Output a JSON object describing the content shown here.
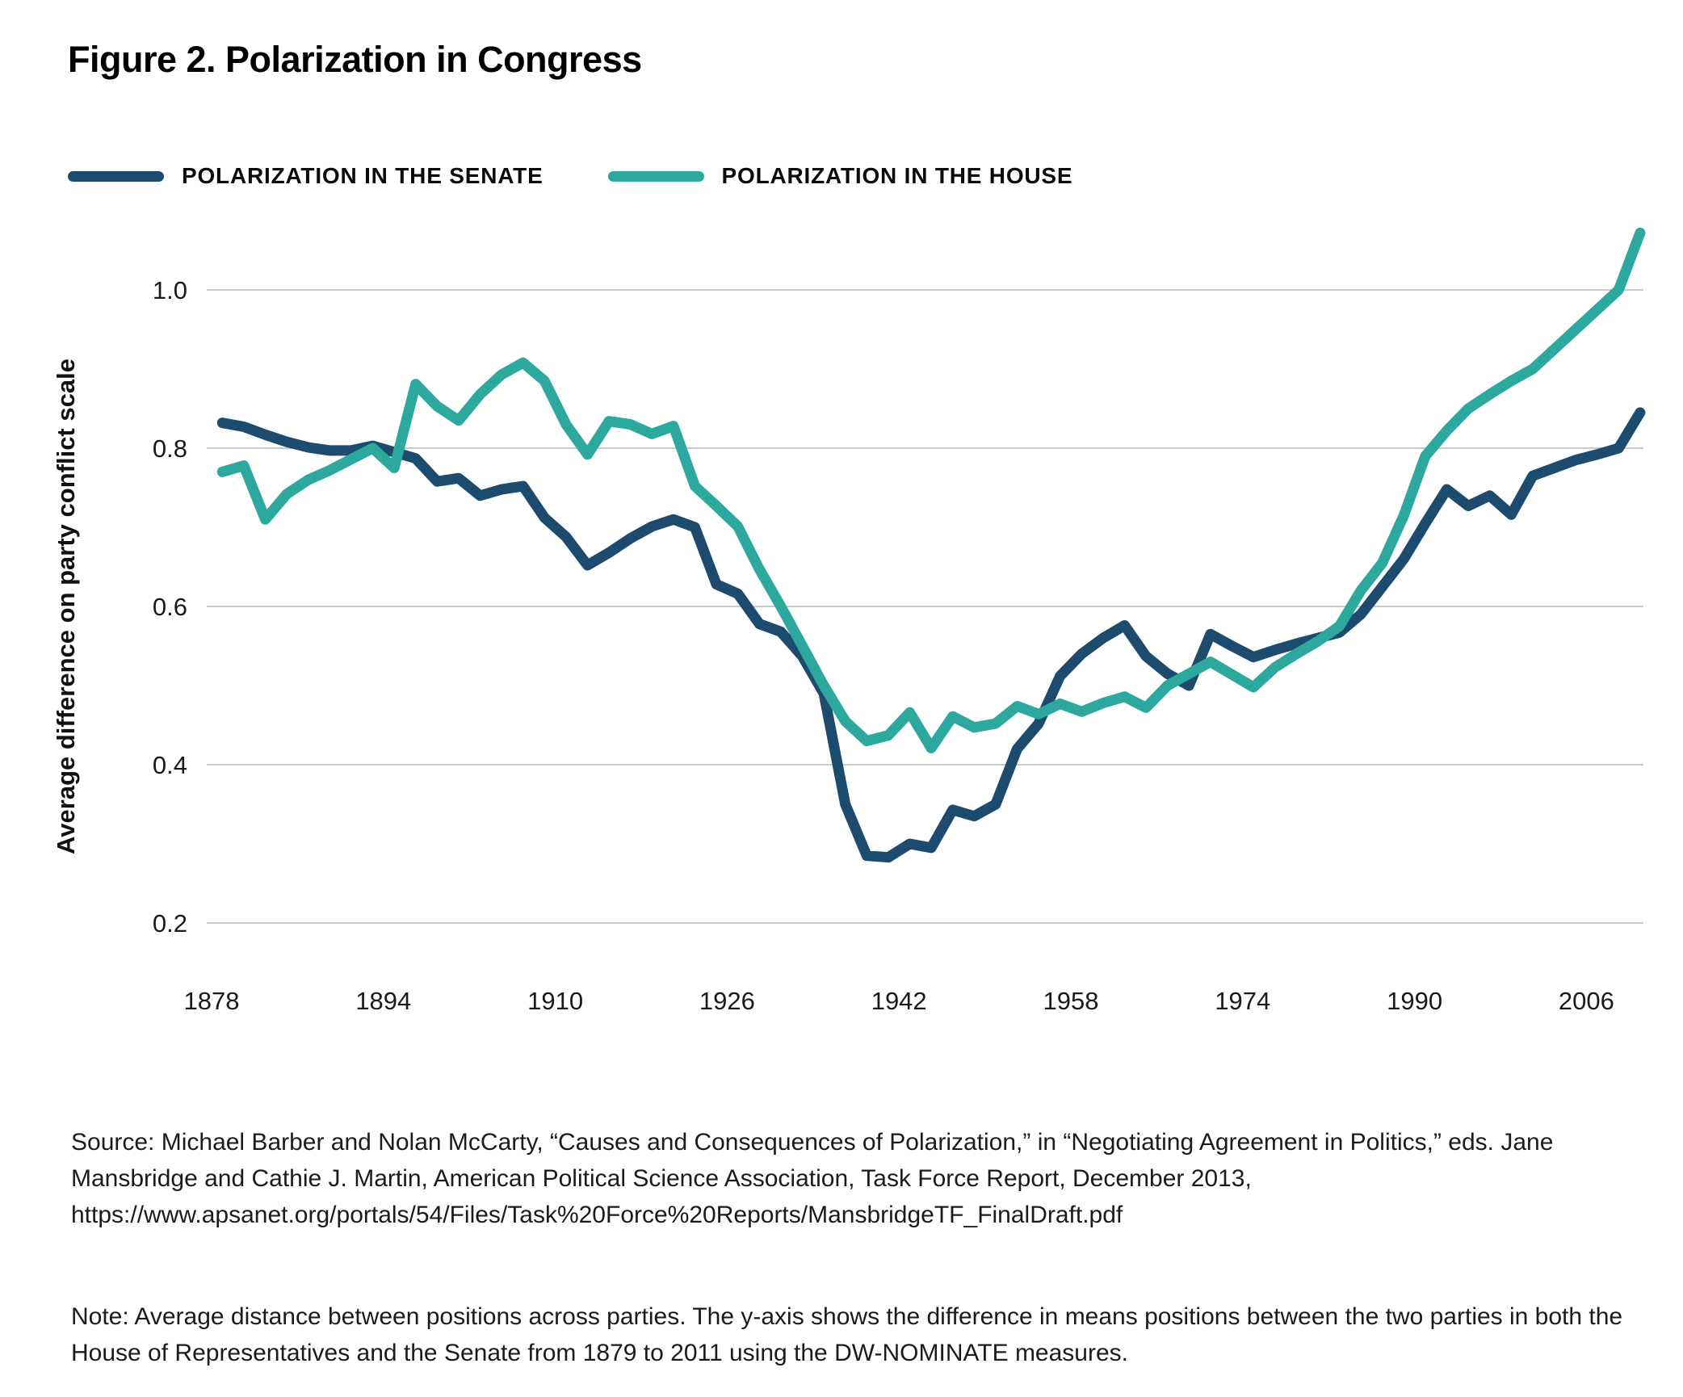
{
  "figure": {
    "title": "Figure 2. Polarization in Congress"
  },
  "legend": [
    {
      "label": "POLARIZATION IN THE SENATE",
      "color": "#1C4B6E"
    },
    {
      "label": "POLARIZATION IN THE HOUSE",
      "color": "#2CA89E"
    }
  ],
  "chart_data": {
    "type": "line",
    "title": "Figure 2. Polarization in Congress",
    "xlabel": "",
    "ylabel": "Average difference on party conflict scale",
    "ylim": [
      0.2,
      1.0
    ],
    "xlim": [
      1878,
      2011
    ],
    "grid": true,
    "legend_position": "top",
    "xticks": [
      1878,
      1894,
      1910,
      1926,
      1942,
      1958,
      1974,
      1990,
      2006
    ],
    "yticks": [
      "1.0",
      "0.8",
      "0.6",
      "0.4",
      "0.2"
    ],
    "x": [
      1879,
      1881,
      1883,
      1885,
      1887,
      1889,
      1891,
      1893,
      1895,
      1897,
      1899,
      1901,
      1903,
      1905,
      1907,
      1909,
      1911,
      1913,
      1915,
      1917,
      1919,
      1921,
      1923,
      1925,
      1927,
      1929,
      1931,
      1933,
      1935,
      1937,
      1939,
      1941,
      1943,
      1945,
      1947,
      1949,
      1951,
      1953,
      1955,
      1957,
      1959,
      1961,
      1963,
      1965,
      1967,
      1969,
      1971,
      1973,
      1975,
      1977,
      1979,
      1981,
      1983,
      1985,
      1987,
      1989,
      1991,
      1993,
      1995,
      1997,
      1999,
      2001,
      2003,
      2005,
      2007,
      2009,
      2011
    ],
    "series": [
      {
        "name": "Polarization in the Senate",
        "color": "#1C4B6E",
        "values": [
          0.832,
          0.827,
          0.817,
          0.808,
          0.801,
          0.797,
          0.797,
          0.803,
          0.795,
          0.787,
          0.758,
          0.762,
          0.74,
          0.748,
          0.752,
          0.712,
          0.688,
          0.652,
          0.668,
          0.686,
          0.701,
          0.71,
          0.7,
          0.628,
          0.616,
          0.578,
          0.568,
          0.537,
          0.49,
          0.35,
          0.285,
          0.283,
          0.3,
          0.295,
          0.343,
          0.335,
          0.35,
          0.42,
          0.452,
          0.512,
          0.54,
          0.56,
          0.576,
          0.537,
          0.515,
          0.5,
          0.565,
          0.55,
          0.536,
          0.545,
          0.553,
          0.56,
          0.567,
          0.59,
          0.625,
          0.66,
          0.705,
          0.748,
          0.727,
          0.74,
          0.716,
          0.765,
          0.775,
          0.785,
          0.792,
          0.8,
          0.845
        ]
      },
      {
        "name": "Polarization in the House",
        "color": "#2CA89E",
        "values": [
          0.77,
          0.778,
          0.71,
          0.742,
          0.76,
          0.772,
          0.786,
          0.8,
          0.775,
          0.881,
          0.853,
          0.835,
          0.868,
          0.893,
          0.908,
          0.885,
          0.83,
          0.792,
          0.834,
          0.83,
          0.818,
          0.828,
          0.752,
          0.727,
          0.701,
          0.647,
          0.6,
          0.55,
          0.5,
          0.455,
          0.43,
          0.437,
          0.466,
          0.421,
          0.461,
          0.447,
          0.452,
          0.474,
          0.464,
          0.477,
          0.467,
          0.478,
          0.486,
          0.472,
          0.5,
          0.515,
          0.53,
          0.514,
          0.498,
          0.523,
          0.54,
          0.556,
          0.575,
          0.62,
          0.655,
          0.715,
          0.79,
          0.822,
          0.85,
          0.868,
          0.885,
          0.9,
          0.925,
          0.95,
          0.975,
          1.0,
          1.072
        ]
      }
    ]
  },
  "source": {
    "text": "Source: Michael Barber and Nolan McCarty, “Causes and Consequences of Polarization,” in “Negotiating Agreement in Politics,” eds. Jane Mansbridge and Cathie J. Martin, American Political Science Association, Task Force Report, December 2013, https://www.apsanet.org/portals/54/Files/Task%20Force%20Reports/MansbridgeTF_FinalDraft.pdf"
  },
  "note": {
    "text": "Note: Average distance between positions across parties. The y-axis shows the difference in means positions between the two parties in both the House of Representatives and the Senate from 1879 to 2011 using the DW-NOMINATE measures."
  }
}
